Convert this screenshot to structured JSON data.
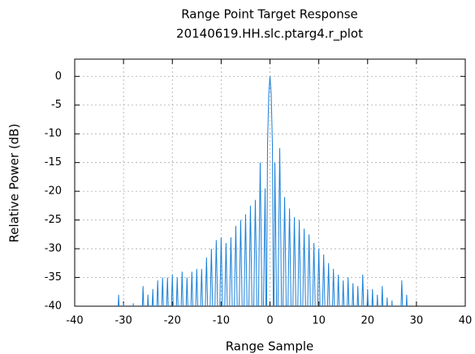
{
  "chart_data": {
    "type": "line",
    "title": "Range Point Target Response",
    "subtitle": "20140619.HH.slc.ptarg4.r_plot",
    "x_label": "Range Sample",
    "y_label": "Relative Power (dB)",
    "xlim": [
      -40,
      40
    ],
    "xticks": [
      -40,
      -30,
      -20,
      -10,
      0,
      10,
      20,
      30,
      40
    ],
    "ylim": [
      -40,
      3
    ],
    "yticks": [
      0,
      -5,
      -10,
      -15,
      -20,
      -25,
      -30,
      -35,
      -40
    ],
    "grid": true,
    "series": [
      {
        "color": "#1a80d9",
        "x": [
          -32.5,
          -32,
          -31.5,
          -31,
          -30.5,
          -30,
          -29.5,
          -29,
          -28.5,
          -28,
          -27.5,
          -27,
          -26.5,
          -26,
          -25.5,
          -25,
          -24.5,
          -24,
          -23.5,
          -23,
          -22.5,
          -22,
          -21.5,
          -21,
          -20.5,
          -20,
          -19.5,
          -19,
          -18.5,
          -18,
          -17.5,
          -17,
          -16.5,
          -16,
          -15.5,
          -15,
          -14.5,
          -14,
          -13.5,
          -13,
          -12.5,
          -12,
          -11.5,
          -11,
          -10.5,
          -10,
          -9.5,
          -9,
          -8.5,
          -8,
          -7.5,
          -7,
          -6.5,
          -6,
          -5.5,
          -5,
          -4.5,
          -4,
          -3.5,
          -3,
          -2.5,
          -2,
          -1.5,
          -1,
          -0.75,
          -0.5,
          -0.25,
          0,
          0.25,
          0.5,
          0.75,
          1,
          1.5,
          2,
          2.5,
          3,
          3.5,
          4,
          4.5,
          5,
          5.5,
          6,
          6.5,
          7,
          7.5,
          8,
          8.5,
          9,
          9.5,
          10,
          10.5,
          11,
          11.5,
          12,
          12.5,
          13,
          13.5,
          14,
          14.5,
          15,
          15.5,
          16,
          16.5,
          17,
          17.5,
          18,
          18.5,
          19,
          19.5,
          20,
          20.5,
          21,
          21.5,
          22,
          22.5,
          23,
          23.5,
          24,
          24.5,
          25,
          25.5,
          26,
          26.5,
          27,
          27.5,
          28,
          28.5,
          29,
          29.5
        ],
        "values": [
          -50,
          -42,
          -50,
          -38,
          -50,
          -39.5,
          -50,
          -42,
          -50,
          -39.5,
          -50,
          -42,
          -50,
          -36.5,
          -50,
          -38,
          -50,
          -37,
          -50,
          -35.5,
          -50,
          -35,
          -50,
          -35,
          -50,
          -34.5,
          -50,
          -35,
          -50,
          -34,
          -50,
          -35,
          -50,
          -34,
          -50,
          -33.5,
          -50,
          -33.5,
          -50,
          -31.5,
          -50,
          -30,
          -50,
          -28.5,
          -50,
          -28,
          -50,
          -29,
          -50,
          -28,
          -50,
          -26,
          -50,
          -25,
          -50,
          -24,
          -50,
          -22.5,
          -50,
          -21.5,
          -50,
          -15,
          -50,
          -19.5,
          -50,
          -12,
          -3,
          0,
          -3,
          -12,
          -50,
          -15,
          -50,
          -12.5,
          -50,
          -21,
          -50,
          -23,
          -50,
          -24.5,
          -50,
          -25,
          -50,
          -26.5,
          -50,
          -27.5,
          -50,
          -29,
          -50,
          -30,
          -50,
          -31,
          -50,
          -32.5,
          -50,
          -33.5,
          -50,
          -34.5,
          -50,
          -35.5,
          -50,
          -35,
          -50,
          -36,
          -50,
          -36.5,
          -50,
          -34.5,
          -50,
          -37,
          -50,
          -37,
          -50,
          -38,
          -50,
          -36.5,
          -50,
          -38.5,
          -50,
          -39,
          -50,
          -42,
          -50,
          -35.5,
          -50,
          -38,
          -50,
          -42,
          -50
        ]
      }
    ]
  }
}
